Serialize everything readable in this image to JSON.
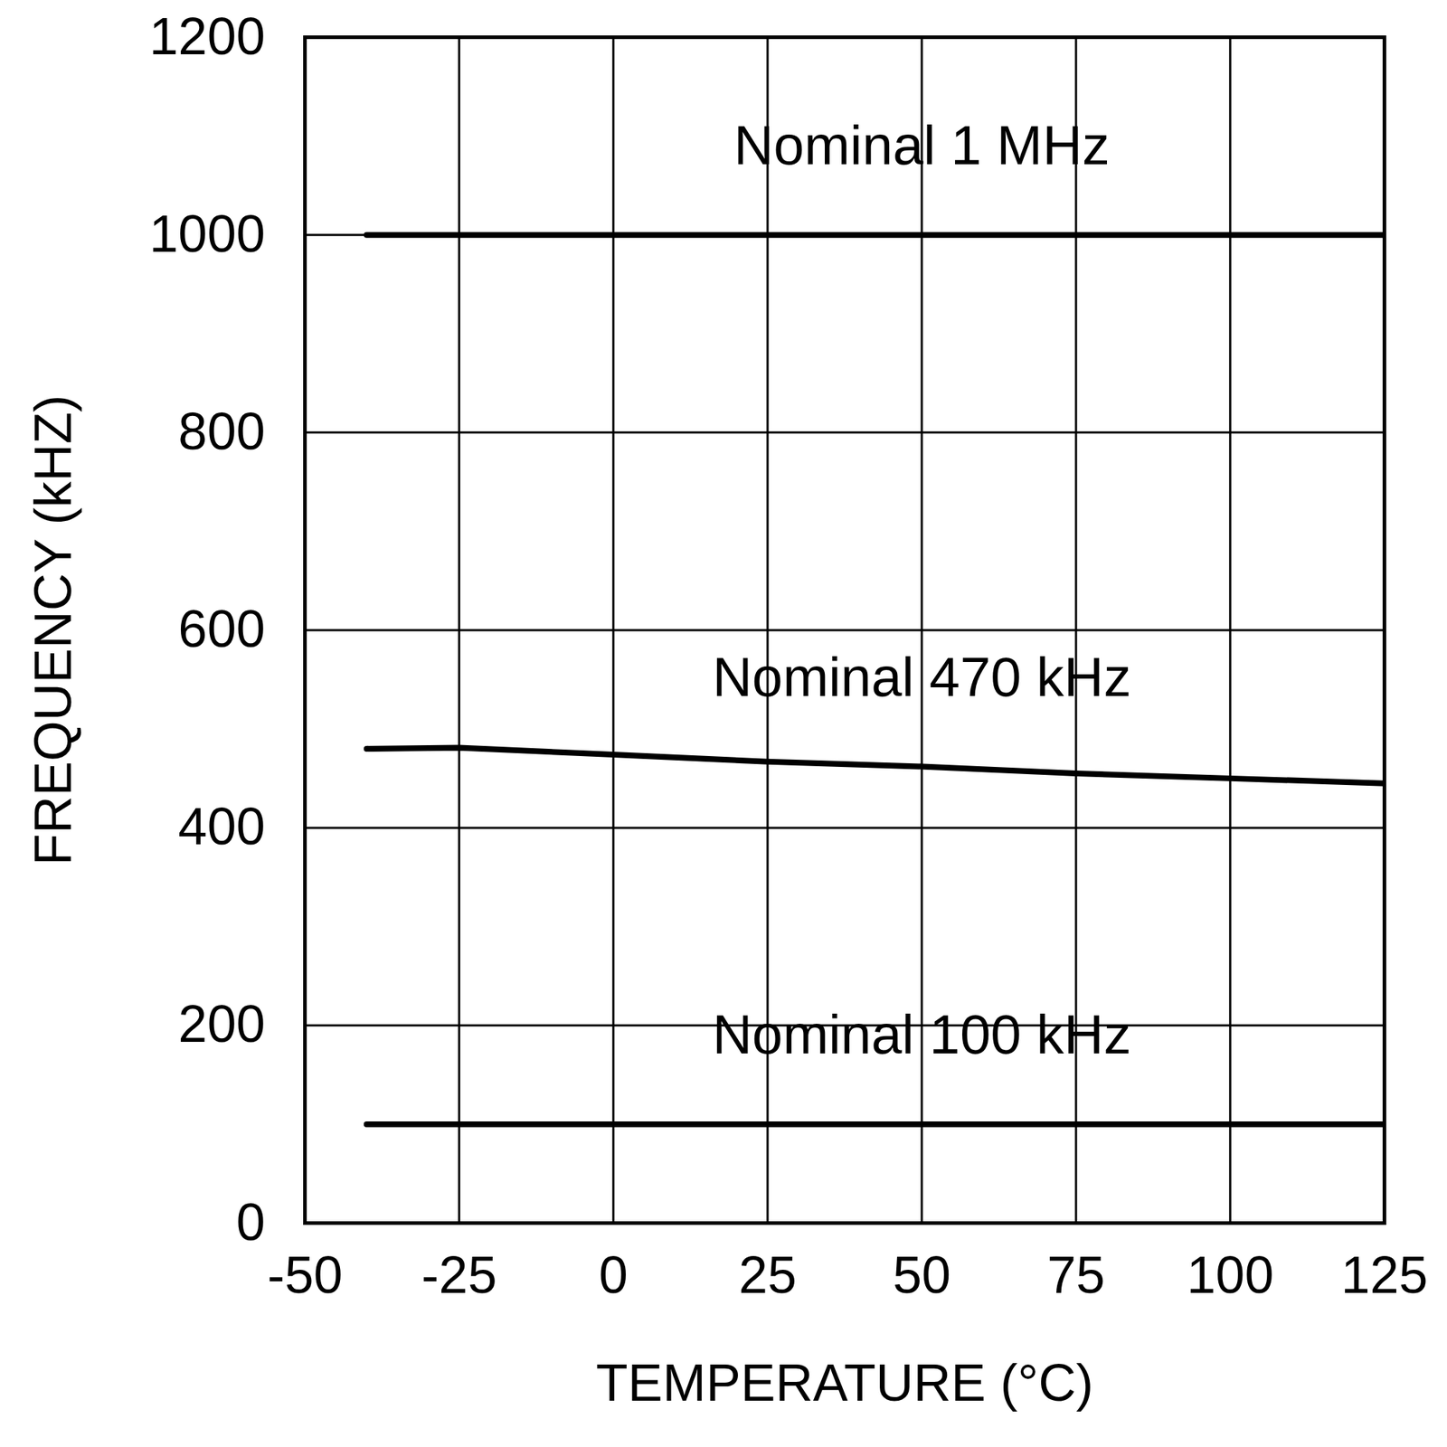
{
  "chart_data": {
    "type": "line",
    "x_label": "TEMPERATURE (°C)",
    "y_label": "FREQUENCY (kHZ)",
    "x": [
      -40,
      -25,
      0,
      25,
      50,
      75,
      100,
      125
    ],
    "series": [
      {
        "name": "Nominal 1 MHz",
        "color": "#000000",
        "values": [
          1000,
          1000,
          1000,
          1000,
          1000,
          1000,
          1000,
          1000
        ]
      },
      {
        "name": "Nominal 470 kHz",
        "color": "#000000",
        "values": [
          480,
          481,
          474,
          467,
          462,
          455,
          450,
          445
        ]
      },
      {
        "name": "Nominal 100 kHz",
        "color": "#000000",
        "values": [
          100,
          100,
          100,
          100,
          100,
          100,
          100,
          100
        ]
      }
    ],
    "xlim": [
      -50,
      125
    ],
    "xticks": [
      -50,
      -25,
      0,
      25,
      50,
      75,
      100,
      125
    ],
    "ylim": [
      0,
      1200
    ],
    "yticks": [
      0,
      200,
      400,
      600,
      800,
      1000,
      1200
    ],
    "grid": true
  }
}
